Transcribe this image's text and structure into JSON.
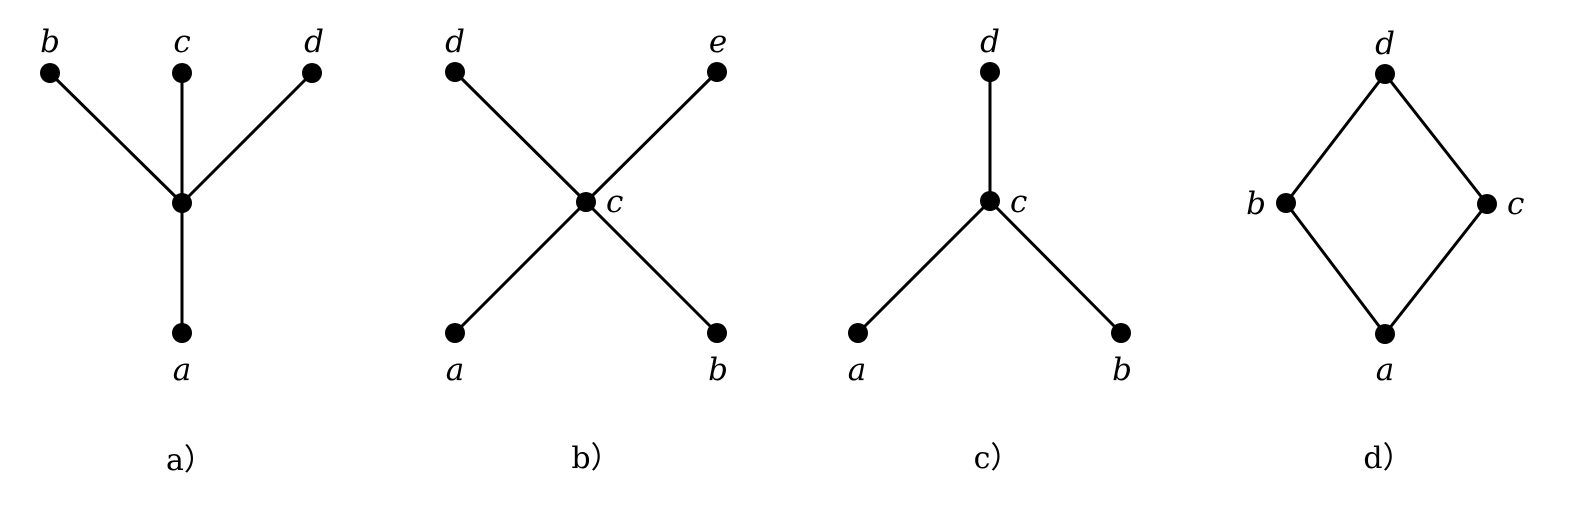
{
  "diagrams": [
    {
      "caption": "a）",
      "nodes": [
        {
          "id": "a",
          "label": "a"
        },
        {
          "id": "b",
          "label": "b"
        },
        {
          "id": "c",
          "label": "c"
        },
        {
          "id": "d",
          "label": "d"
        },
        {
          "id": "center",
          "label": ""
        }
      ],
      "edges": [
        [
          "b",
          "center"
        ],
        [
          "c",
          "center"
        ],
        [
          "d",
          "center"
        ],
        [
          "center",
          "a"
        ]
      ]
    },
    {
      "caption": "b）",
      "nodes": [
        {
          "id": "d",
          "label": "d"
        },
        {
          "id": "e",
          "label": "e"
        },
        {
          "id": "c",
          "label": "c"
        },
        {
          "id": "a",
          "label": "a"
        },
        {
          "id": "b",
          "label": "b"
        }
      ],
      "edges": [
        [
          "d",
          "c"
        ],
        [
          "e",
          "c"
        ],
        [
          "c",
          "a"
        ],
        [
          "c",
          "b"
        ]
      ]
    },
    {
      "caption": "c）",
      "nodes": [
        {
          "id": "d",
          "label": "d"
        },
        {
          "id": "c",
          "label": "c"
        },
        {
          "id": "a",
          "label": "a"
        },
        {
          "id": "b",
          "label": "b"
        }
      ],
      "edges": [
        [
          "d",
          "c"
        ],
        [
          "c",
          "a"
        ],
        [
          "c",
          "b"
        ]
      ]
    },
    {
      "caption": "d）",
      "nodes": [
        {
          "id": "d",
          "label": "d"
        },
        {
          "id": "b",
          "label": "b"
        },
        {
          "id": "c",
          "label": "c"
        },
        {
          "id": "a",
          "label": "a"
        }
      ],
      "edges": [
        [
          "d",
          "b"
        ],
        [
          "d",
          "c"
        ],
        [
          "b",
          "a"
        ],
        [
          "c",
          "a"
        ]
      ]
    }
  ]
}
